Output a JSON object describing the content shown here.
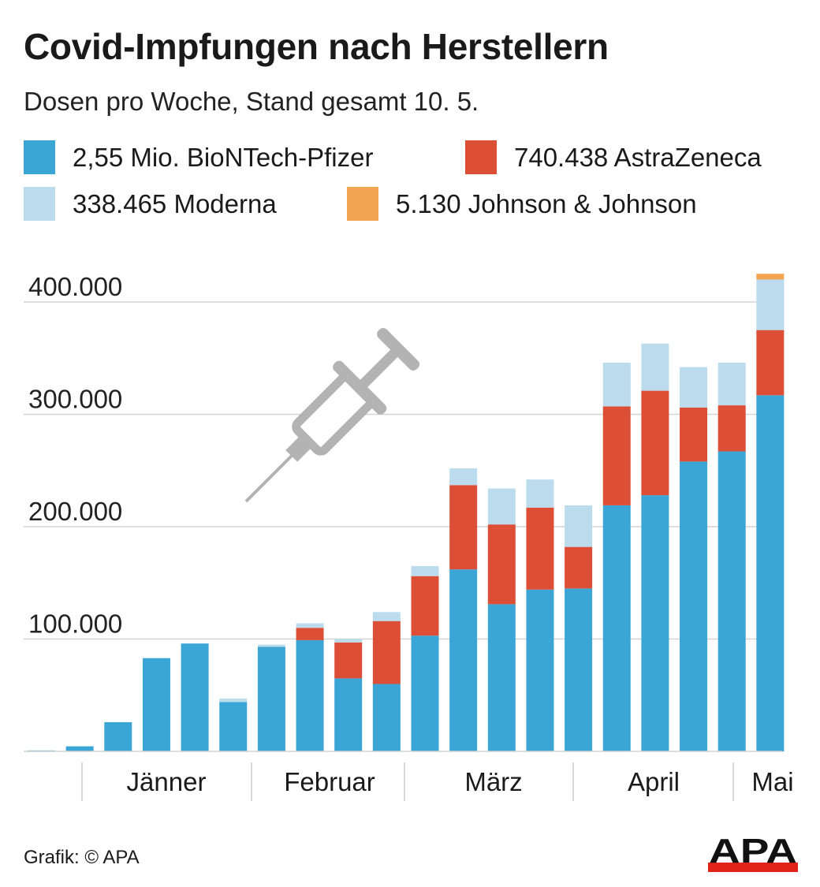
{
  "chart_data": {
    "type": "bar",
    "stacked": true,
    "title": "Covid-Impfungen nach Herstellern",
    "subtitle": "Dosen pro Woche, Stand gesamt 10. 5.",
    "yticks": [
      100000,
      200000,
      300000,
      400000
    ],
    "ytick_labels": [
      "100.000",
      "200.000",
      "300.000",
      "400.000"
    ],
    "ylim": [
      0,
      420000
    ],
    "grid": true,
    "month_labels": [
      "Jänner",
      "Februar",
      "März",
      "April",
      "Mai"
    ],
    "series": [
      {
        "name": "BioNTech-Pfizer",
        "legend_label": "2,55 Mio. BioNTech-Pfizer",
        "color": "#3ba5d5",
        "values": [
          800,
          4500,
          26000,
          83000,
          96000,
          44000,
          93000,
          99000,
          65000,
          60000,
          103000,
          162000,
          131000,
          144000,
          145000,
          219000,
          228000,
          258000,
          267000,
          317000
        ]
      },
      {
        "name": "AstraZeneca",
        "legend_label": "740.438 AstraZeneca",
        "color": "#dd4e36",
        "values": [
          0,
          0,
          0,
          0,
          0,
          0,
          0,
          11000,
          32000,
          56000,
          53000,
          75000,
          71000,
          73000,
          37000,
          88000,
          93000,
          48000,
          41000,
          58000
        ]
      },
      {
        "name": "Moderna",
        "legend_label": "338.465 Moderna",
        "color": "#bcdcee",
        "values": [
          0,
          0,
          0,
          0,
          0,
          3000,
          2000,
          4000,
          3000,
          8000,
          9000,
          15000,
          32000,
          25000,
          37000,
          39000,
          42000,
          36000,
          38000,
          45000
        ]
      },
      {
        "name": "Johnson & Johnson",
        "legend_label": "5.130 Johnson & Johnson",
        "color": "#f3a552",
        "values": [
          0,
          0,
          0,
          0,
          0,
          0,
          0,
          0,
          0,
          0,
          0,
          0,
          0,
          0,
          0,
          0,
          0,
          0,
          0,
          5130
        ]
      }
    ]
  },
  "source": "Grafik: © APA",
  "logo_text": "APA",
  "colors": {
    "text": "#1a1a1a",
    "tick_label": "#222222",
    "grid": "#d4d4d4",
    "divider": "#cccccc",
    "syringe": "#b3b3b3",
    "logo_red": "#e2231a"
  }
}
